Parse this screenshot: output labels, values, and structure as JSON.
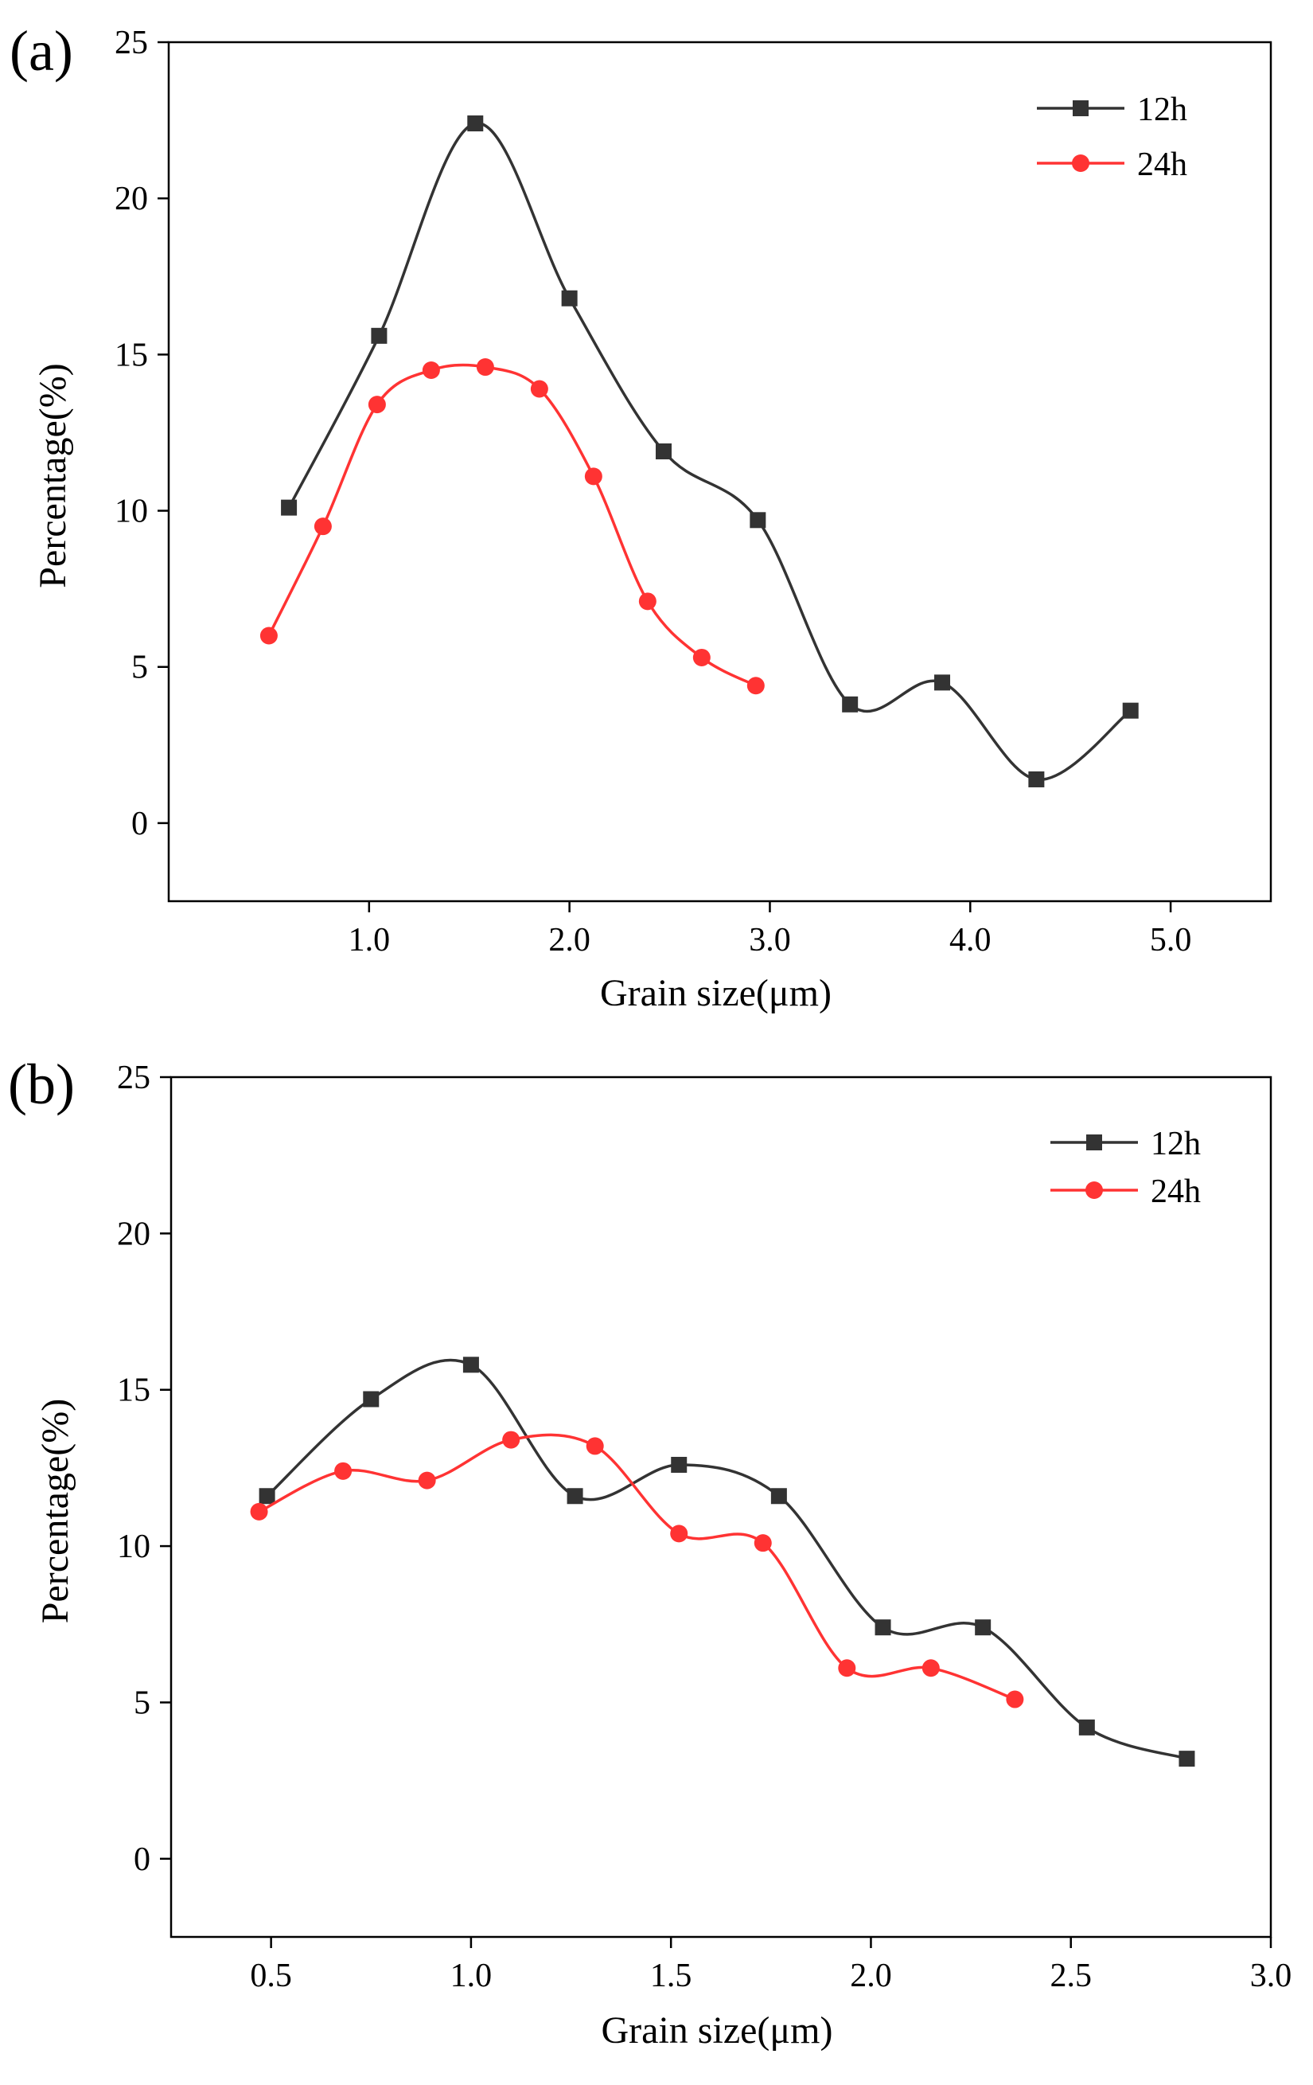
{
  "colors": {
    "s12h": "#333333",
    "s24h": "#ff3333"
  },
  "chart_data": [
    {
      "type": "line",
      "panel": "(a)",
      "xlabel": "Grain size(μm)",
      "ylabel": "Percentage(%)",
      "xlim": [
        0.0,
        5.5
      ],
      "ylim": [
        -2.5,
        25
      ],
      "xticks": [
        1.0,
        2.0,
        3.0,
        4.0,
        5.0
      ],
      "xtick_labels": [
        "1.0",
        "2.0",
        "3.0",
        "4.0",
        "5.0"
      ],
      "yticks": [
        0,
        5,
        10,
        15,
        20,
        25
      ],
      "ytick_labels": [
        "0",
        "5",
        "10",
        "15",
        "20",
        "25"
      ],
      "legend_position": "top-right",
      "series": [
        {
          "name": "12h",
          "marker": "square",
          "color": "#333333",
          "x": [
            0.6,
            1.05,
            1.53,
            2.0,
            2.47,
            2.94,
            3.4,
            3.86,
            4.33,
            4.8
          ],
          "y": [
            10.1,
            15.6,
            22.4,
            16.8,
            11.9,
            9.7,
            3.8,
            4.5,
            1.4,
            3.6
          ]
        },
        {
          "name": "24h",
          "marker": "circle",
          "color": "#ff3333",
          "x": [
            0.5,
            0.77,
            1.04,
            1.31,
            1.58,
            1.85,
            2.12,
            2.39,
            2.66,
            2.93
          ],
          "y": [
            6.0,
            9.5,
            13.4,
            14.5,
            14.6,
            13.9,
            11.1,
            7.1,
            5.3,
            4.4
          ]
        }
      ]
    },
    {
      "type": "line",
      "panel": "(b)",
      "xlabel": "Grain size(μm)",
      "ylabel": "Percentage(%)",
      "xlim": [
        0.25,
        3.0
      ],
      "ylim": [
        -2.5,
        25
      ],
      "xticks": [
        0.5,
        1.0,
        1.5,
        2.0,
        2.5,
        3.0
      ],
      "xtick_labels": [
        "0.5",
        "1.0",
        "1.5",
        "2.0",
        "2.5",
        "3.0"
      ],
      "yticks": [
        0,
        5,
        10,
        15,
        20,
        25
      ],
      "ytick_labels": [
        "0",
        "5",
        "10",
        "15",
        "20",
        "25"
      ],
      "legend_position": "top-right",
      "series": [
        {
          "name": "12h",
          "marker": "square",
          "color": "#333333",
          "x": [
            0.49,
            0.75,
            1.0,
            1.26,
            1.52,
            1.77,
            2.03,
            2.28,
            2.54,
            2.79
          ],
          "y": [
            11.6,
            14.7,
            15.8,
            11.6,
            12.6,
            11.6,
            7.4,
            7.4,
            4.2,
            3.2
          ]
        },
        {
          "name": "24h",
          "marker": "circle",
          "color": "#ff3333",
          "x": [
            0.47,
            0.68,
            0.89,
            1.1,
            1.31,
            1.52,
            1.73,
            1.94,
            2.15,
            2.36
          ],
          "y": [
            11.1,
            12.4,
            12.1,
            13.4,
            13.2,
            10.4,
            10.1,
            6.1,
            6.1,
            5.1
          ]
        }
      ]
    }
  ]
}
